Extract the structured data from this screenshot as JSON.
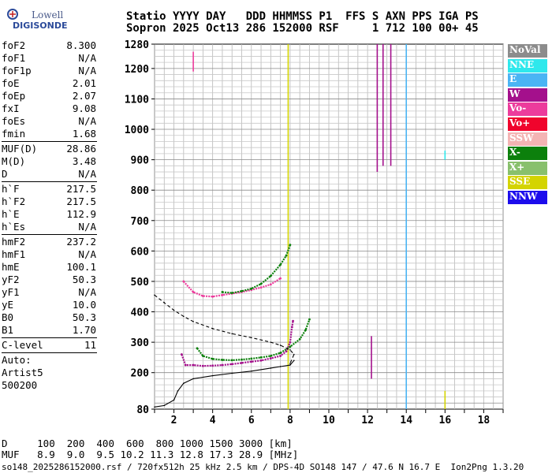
{
  "logo": {
    "line1": "Lowell",
    "line2": "DIGISONDE"
  },
  "header": {
    "line1": "Statio YYYY DAY   DDD HHMMSS P1  FFS S AXN PPS IGA PS",
    "line2": "Sopron 2025 Oct13 286 152000 RSF     1 712 100 00+ 45"
  },
  "params": {
    "group1": [
      {
        "name": "foF2",
        "value": "8.300"
      },
      {
        "name": "foF1",
        "value": "N/A"
      },
      {
        "name": "foF1p",
        "value": "N/A"
      },
      {
        "name": "foE",
        "value": "2.01"
      },
      {
        "name": "foEp",
        "value": "2.07"
      },
      {
        "name": "fxI",
        "value": "9.08"
      },
      {
        "name": "foEs",
        "value": "N/A"
      },
      {
        "name": "fmin",
        "value": "1.68"
      }
    ],
    "group2": [
      {
        "name": "MUF(D)",
        "value": "28.86"
      },
      {
        "name": "M(D)",
        "value": "3.48"
      },
      {
        "name": "D",
        "value": "N/A"
      }
    ],
    "group3": [
      {
        "name": "h`F",
        "value": "217.5"
      },
      {
        "name": "h`F2",
        "value": "217.5"
      },
      {
        "name": "h`E",
        "value": "112.9"
      },
      {
        "name": "h`Es",
        "value": "N/A"
      }
    ],
    "group4": [
      {
        "name": "hmF2",
        "value": "237.2"
      },
      {
        "name": "hmF1",
        "value": "N/A"
      },
      {
        "name": "hmE",
        "value": "100.1"
      },
      {
        "name": "yF2",
        "value": "50.3"
      },
      {
        "name": "yF1",
        "value": "N/A"
      },
      {
        "name": "yE",
        "value": "10.0"
      },
      {
        "name": "B0",
        "value": "50.3"
      },
      {
        "name": "B1",
        "value": "1.70"
      }
    ],
    "group5": [
      {
        "name": "C-level",
        "value": "11"
      }
    ],
    "auto": [
      "Auto:",
      "Artist5",
      "500200"
    ]
  },
  "legend": [
    {
      "label": "NoVal",
      "color": "#8c8c8c"
    },
    {
      "label": "NNE",
      "color": "#2ee8ec"
    },
    {
      "label": "E",
      "color": "#4ab4f4"
    },
    {
      "label": "W",
      "color": "#a4108c"
    },
    {
      "label": "Vo-",
      "color": "#ec3c9c"
    },
    {
      "label": "Vo+",
      "color": "#f0042c"
    },
    {
      "label": "SSW",
      "color": "#f4b4b4"
    },
    {
      "label": "X-",
      "color": "#0c800c"
    },
    {
      "label": "X+",
      "color": "#88c06c"
    },
    {
      "label": "SSE",
      "color": "#d4d400"
    },
    {
      "label": "NNW",
      "color": "#1c0cec"
    }
  ],
  "chart_data": {
    "type": "scatter",
    "xlim": [
      1.0,
      19.0
    ],
    "ylim": [
      80,
      1280
    ],
    "x_ticks": [
      2,
      4,
      6,
      8,
      10,
      12,
      14,
      16,
      18
    ],
    "x_tick_labels": [
      "2",
      "4",
      "6",
      "8",
      "10",
      "12",
      "14",
      "16",
      "18"
    ],
    "y_ticks": [
      80,
      200,
      300,
      400,
      500,
      600,
      700,
      800,
      900,
      1000,
      1100,
      1200,
      1280
    ],
    "y_tick_labels": [
      "80",
      "200",
      "300",
      "400",
      "500",
      "600",
      "700",
      "800",
      "900",
      "1000",
      "1100",
      "1200",
      "1280"
    ],
    "grid": true,
    "series": [
      {
        "name": "",
        "color": "#a4108c",
        "points": [
          [
            2.4,
            260
          ],
          [
            2.6,
            225
          ],
          [
            3.0,
            225
          ],
          [
            3.5,
            222
          ],
          [
            4.0,
            223
          ],
          [
            4.5,
            225
          ],
          [
            5.0,
            228
          ],
          [
            5.5,
            232
          ],
          [
            6.0,
            236
          ],
          [
            6.5,
            240
          ],
          [
            7.0,
            247
          ],
          [
            7.5,
            255
          ],
          [
            7.8,
            270
          ],
          [
            8.0,
            300
          ],
          [
            8.1,
            350
          ],
          [
            8.15,
            370
          ]
        ]
      },
      {
        "name": "",
        "color": "#0c800c",
        "points": [
          [
            3.2,
            280
          ],
          [
            3.5,
            255
          ],
          [
            4.0,
            245
          ],
          [
            4.5,
            242
          ],
          [
            5.0,
            241
          ],
          [
            5.5,
            243
          ],
          [
            6.0,
            246
          ],
          [
            6.5,
            250
          ],
          [
            7.0,
            255
          ],
          [
            7.5,
            265
          ],
          [
            8.0,
            285
          ],
          [
            8.5,
            310
          ],
          [
            8.8,
            340
          ],
          [
            9.0,
            375
          ]
        ]
      },
      {
        "name": "",
        "color": "#ec3c9c",
        "points": [
          [
            2.5,
            500
          ],
          [
            3.0,
            465
          ],
          [
            3.5,
            452
          ],
          [
            4.0,
            450
          ],
          [
            4.5,
            455
          ],
          [
            5.0,
            460
          ],
          [
            5.5,
            465
          ],
          [
            6.0,
            472
          ],
          [
            6.5,
            480
          ],
          [
            7.0,
            490
          ],
          [
            7.5,
            510
          ]
        ]
      },
      {
        "name": "",
        "color": "#0c800c",
        "points": [
          [
            4.5,
            465
          ],
          [
            5.0,
            462
          ],
          [
            5.5,
            468
          ],
          [
            6.0,
            476
          ],
          [
            6.5,
            492
          ],
          [
            7.0,
            518
          ],
          [
            7.5,
            555
          ],
          [
            7.8,
            585
          ],
          [
            8.0,
            620
          ]
        ]
      },
      {
        "name": "",
        "color": "#000000",
        "points": [
          [
            1.0,
            87
          ],
          [
            1.5,
            92
          ],
          [
            2.0,
            110
          ],
          [
            2.2,
            140
          ],
          [
            2.5,
            165
          ],
          [
            3.0,
            180
          ],
          [
            4.0,
            190
          ],
          [
            5.0,
            198
          ],
          [
            6.0,
            205
          ],
          [
            7.0,
            215
          ],
          [
            7.5,
            220
          ],
          [
            8.0,
            225
          ],
          [
            8.2,
            240
          ]
        ]
      },
      {
        "name": "",
        "color": "#000000",
        "dashed": true,
        "points": [
          [
            1.0,
            455
          ],
          [
            1.5,
            430
          ],
          [
            2.0,
            405
          ],
          [
            2.5,
            385
          ],
          [
            3.0,
            368
          ],
          [
            4.0,
            345
          ],
          [
            5.0,
            328
          ],
          [
            6.0,
            315
          ],
          [
            7.0,
            300
          ],
          [
            7.5,
            290
          ],
          [
            8.0,
            275
          ],
          [
            8.2,
            260
          ],
          [
            8.0,
            230
          ]
        ]
      }
    ],
    "vertical_traces": [
      {
        "x": 14.0,
        "y": [
          80,
          1280
        ],
        "color": "#4ab4f4"
      },
      {
        "x": 12.5,
        "y": [
          860,
          1280
        ],
        "color": "#a4108c"
      },
      {
        "x": 12.8,
        "y": [
          880,
          1280
        ],
        "color": "#a4108c"
      },
      {
        "x": 13.2,
        "y": [
          880,
          1280
        ],
        "color": "#a4108c"
      },
      {
        "x": 7.9,
        "y": [
          80,
          1280
        ],
        "color": "#d4d400"
      },
      {
        "x": 12.2,
        "y": [
          180,
          320
        ],
        "color": "#a4108c"
      },
      {
        "x": 16.0,
        "y": [
          80,
          140
        ],
        "color": "#d4d400"
      },
      {
        "x": 16.0,
        "y": [
          900,
          930
        ],
        "color": "#2ee8ec"
      },
      {
        "x": 3.0,
        "y": [
          1190,
          1255
        ],
        "color": "#ec3c9c"
      }
    ]
  },
  "bottom_table": {
    "row1": "D     100  200  400  600  800 1000 1500 3000 [km]",
    "row2": "MUF   8.9  9.0  9.5 10.2 11.3 12.8 17.3 28.9 [MHz]"
  },
  "footer": "so148_2025286152000.rsf / 720fx512h 25 kHz 2.5 km / DPS-4D SO148 147 / 47.6 N 16.7 E  Ion2Png 1.3.20"
}
